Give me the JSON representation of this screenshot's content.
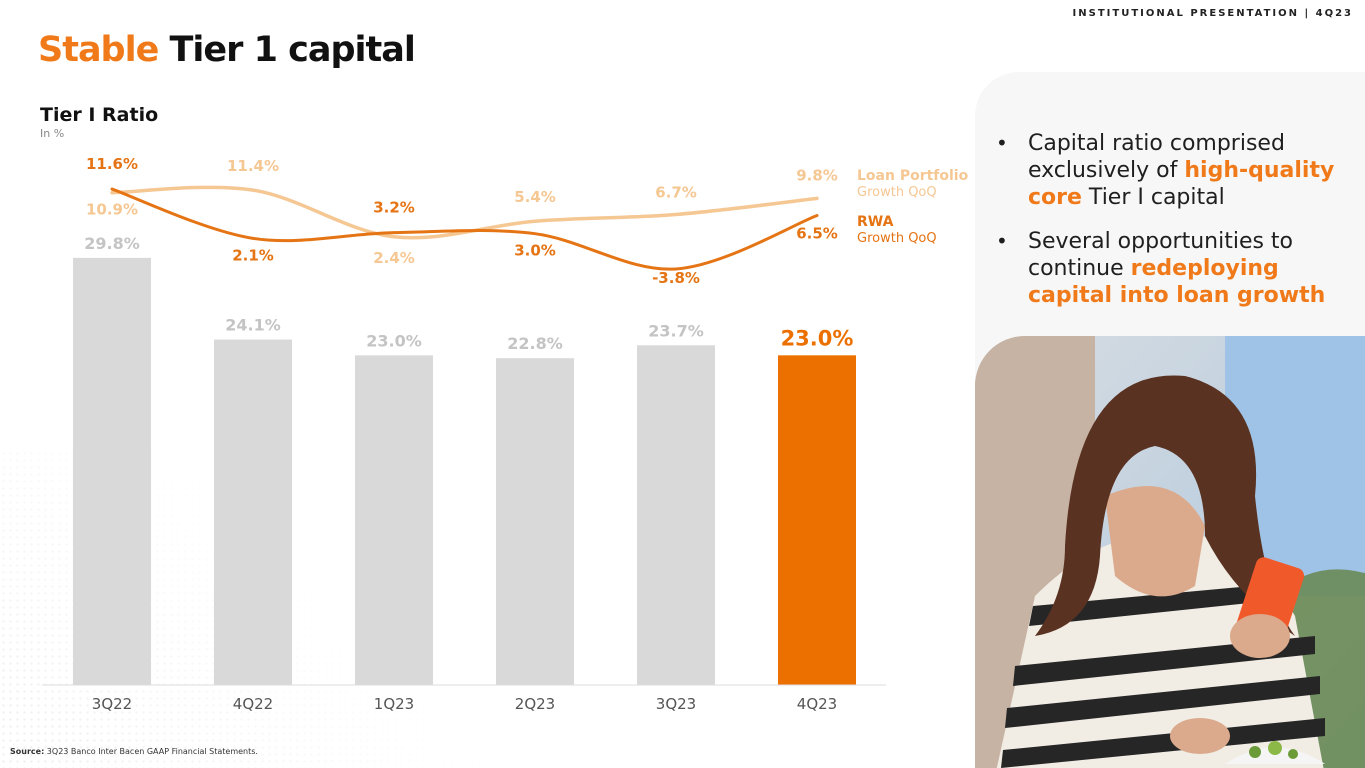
{
  "header": {
    "tag": "INSTITUTIONAL PRESENTATION | 4Q23"
  },
  "title": {
    "accent": "Stable",
    "rest": " Tier 1 capital"
  },
  "right_panel": {
    "bullet_glyph": "•",
    "bullets": [
      {
        "before": "Capital ratio comprised exclusively of ",
        "highlight": "high-quality core",
        "after": " Tier I capital"
      },
      {
        "before": "Several opportunities to continue ",
        "highlight": "redeploying capital into loan growth",
        "after": ""
      }
    ]
  },
  "footer": {
    "source_label": "Source:",
    "source_text": " 3Q23 Banco Inter Bacen GAAP Financial Statements."
  },
  "colors": {
    "accent": "#ec7000",
    "bar_gray": "#d9d9d9",
    "loan_portfolio_line": "#f5c793",
    "rwa_line": "#e57414"
  },
  "chart_data": {
    "type": "bar",
    "title": "Tier I Ratio",
    "subtitle": "In %",
    "categories": [
      "3Q22",
      "4Q22",
      "1Q23",
      "2Q23",
      "3Q23",
      "4Q23"
    ],
    "series": [
      {
        "values": [
          29.8,
          24.1,
          23.0,
          22.8,
          23.7,
          23.0
        ],
        "labels": [
          "29.8%",
          "24.1%",
          "23.0%",
          "22.8%",
          "23.7%",
          "23.0%"
        ],
        "highlight_index": 5
      }
    ],
    "ylim": [
      0,
      30
    ],
    "overlay_lines": [
      {
        "name": "Loan Portfolio",
        "sub": "Growth QoQ",
        "values": [
          10.9,
          11.4,
          2.4,
          5.4,
          6.7,
          9.8
        ],
        "labels": [
          "10.9%",
          "11.4%",
          "2.4%",
          "5.4%",
          "6.7%",
          "9.8%"
        ]
      },
      {
        "name": "RWA",
        "sub": "Growth QoQ",
        "values": [
          11.6,
          2.1,
          3.2,
          3.0,
          -3.8,
          6.5
        ],
        "labels": [
          "11.6%",
          "2.1%",
          "3.2%",
          "3.0%",
          "-3.8%",
          "6.5%"
        ]
      }
    ],
    "legend_position": "right",
    "grid": false
  }
}
